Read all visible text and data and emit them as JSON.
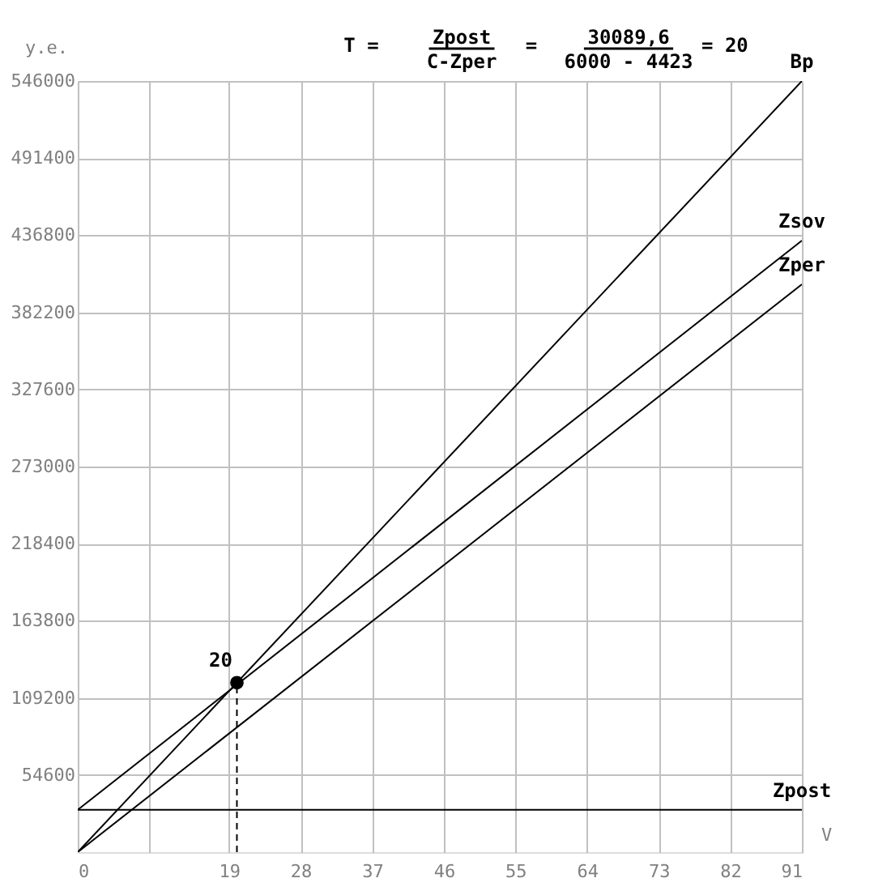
{
  "chart_data": {
    "type": "line",
    "ylabel": "у.е.",
    "xlabel": "V",
    "annotations": [
      "T =",
      "Zpost",
      "C-Zper",
      "=",
      "30089,6",
      "6000 - 4423",
      "= 20",
      {
        "text": "20",
        "x": 20,
        "y": 120000
      }
    ],
    "xlim": [
      0,
      91
    ],
    "ylim": [
      0,
      546000
    ],
    "xticks": [
      0,
      {
        "value": 9,
        "label": null
      },
      19,
      28,
      37,
      46,
      55,
      64,
      73,
      82,
      91
    ],
    "yticks": [
      54600,
      109200,
      163800,
      218400,
      273000,
      327600,
      382200,
      436800,
      491400,
      546000
    ],
    "grid": true,
    "marker": "none",
    "line_style": "solid",
    "series": [
      {
        "name": "Bp",
        "color": "#000000",
        "x": [
          0,
          91
        ],
        "values": [
          0,
          546000
        ]
      },
      {
        "name": "Zsov",
        "color": "#000000",
        "x": [
          0,
          91
        ],
        "values": [
          30000,
          433000
        ]
      },
      {
        "name": "Zper",
        "color": "#000000",
        "x": [
          0,
          91
        ],
        "values": [
          0,
          402000
        ]
      },
      {
        "name": "Zpost",
        "color": "#000000",
        "x": [
          0,
          91
        ],
        "values": [
          30000,
          30000
        ]
      },
      {
        "type": "line",
        "line_style": "dashed",
        "color": "#000000",
        "x": [
          20,
          20
        ],
        "values": [
          0,
          120000
        ]
      },
      {
        "type": "scatter",
        "marker": "circle",
        "color": "#000000",
        "x": [
          20
        ],
        "values": [
          120000
        ]
      }
    ]
  }
}
